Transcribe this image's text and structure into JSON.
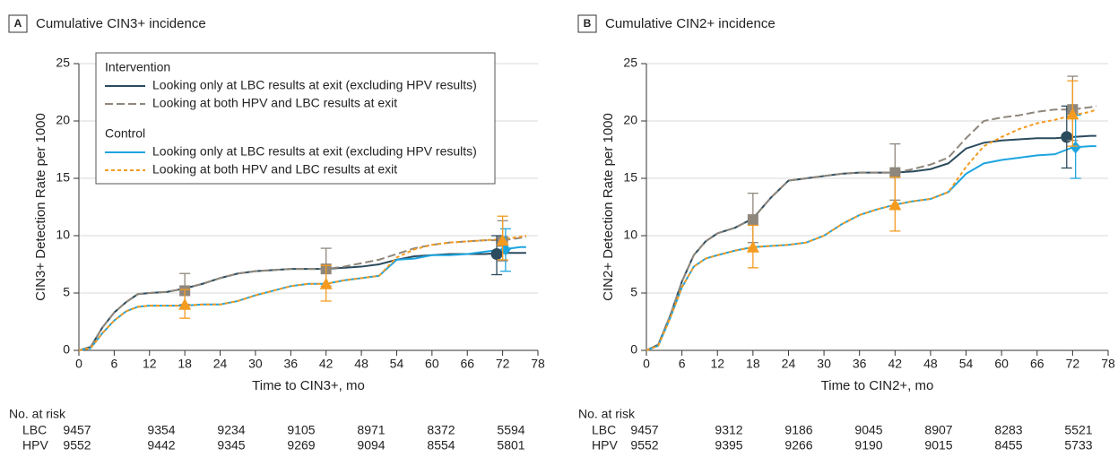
{
  "chart_data": [
    {
      "type": "line",
      "panel_label": "A",
      "title": "Cumulative CIN3+ incidence",
      "xlabel": "Time to CIN3+, mo",
      "ylabel": "CIN3+ Detection Rate per 1000",
      "xlim": [
        0,
        78
      ],
      "xticks": [
        0,
        6,
        12,
        18,
        24,
        30,
        36,
        42,
        48,
        54,
        60,
        66,
        72,
        78
      ],
      "ylim": [
        0,
        25
      ],
      "yticks": [
        0,
        5,
        10,
        15,
        20,
        25
      ],
      "grid": true,
      "legend": true,
      "legend_groups": [
        "Intervention",
        "Control"
      ],
      "x": [
        0,
        2,
        4,
        6,
        8,
        10,
        12,
        15,
        18,
        21,
        24,
        27,
        30,
        33,
        36,
        39,
        42,
        45,
        48,
        51,
        54,
        57,
        60,
        63,
        66,
        69,
        72,
        75,
        76
      ],
      "series": [
        {
          "name": "Looking only at LBC results at exit (excluding HPV results)",
          "group": 0,
          "color": "#2b4b5e",
          "dash": false,
          "marker": "circle",
          "values": [
            0,
            0.3,
            2,
            3.3,
            4.2,
            4.9,
            5.0,
            5.1,
            5.4,
            5.8,
            6.3,
            6.7,
            6.9,
            7.0,
            7.1,
            7.1,
            7.1,
            7.2,
            7.3,
            7.5,
            7.9,
            8.2,
            8.3,
            8.4,
            8.4,
            8.4,
            8.5,
            8.5,
            8.5
          ],
          "marker_x": [
            71
          ],
          "marker_values": [
            8.4
          ],
          "ci_low": [
            6.6
          ],
          "ci_high": [
            10.0
          ]
        },
        {
          "name": "Looking at both HPV and LBC results at exit",
          "group": 0,
          "color": "#8f877c",
          "dash": true,
          "marker": "square",
          "values": [
            0,
            0.3,
            2,
            3.3,
            4.2,
            4.9,
            5.0,
            5.1,
            5.4,
            5.8,
            6.3,
            6.7,
            6.9,
            7.0,
            7.1,
            7.1,
            7.1,
            7.3,
            7.6,
            7.9,
            8.4,
            8.9,
            9.2,
            9.4,
            9.5,
            9.6,
            9.6,
            9.8,
            9.9
          ],
          "marker_x": [
            18,
            42,
            72
          ],
          "marker_values": [
            5.2,
            7.1,
            9.5
          ],
          "ci_low": [
            4.0,
            5.6,
            7.8
          ],
          "ci_high": [
            6.7,
            8.9,
            11.3
          ]
        },
        {
          "name": "Looking only at LBC results at exit (excluding HPV results)",
          "group": 1,
          "color": "#1ea5e0",
          "dash": false,
          "marker": "diamond",
          "values": [
            0,
            0.2,
            1.5,
            2.6,
            3.4,
            3.8,
            3.9,
            3.9,
            3.9,
            4.0,
            4.0,
            4.3,
            4.8,
            5.2,
            5.6,
            5.8,
            5.8,
            6.1,
            6.3,
            6.5,
            7.9,
            8.0,
            8.3,
            8.3,
            8.4,
            8.6,
            8.8,
            9.0,
            9.0
          ],
          "marker_x": [
            72.5
          ],
          "marker_values": [
            8.8
          ],
          "ci_low": [
            6.9
          ],
          "ci_high": [
            10.6
          ]
        },
        {
          "name": "Looking at both HPV and LBC results at exit",
          "group": 1,
          "color": "#f49b20",
          "dash": true,
          "marker": "triangle",
          "values": [
            0,
            0.2,
            1.5,
            2.6,
            3.4,
            3.8,
            3.9,
            3.9,
            3.9,
            4.0,
            4.0,
            4.3,
            4.8,
            5.2,
            5.6,
            5.8,
            5.8,
            6.1,
            6.3,
            6.5,
            8.1,
            8.8,
            9.2,
            9.4,
            9.5,
            9.6,
            9.7,
            9.9,
            10.0
          ],
          "marker_x": [
            18,
            42,
            72
          ],
          "marker_values": [
            4.0,
            5.8,
            9.6
          ],
          "ci_low": [
            2.8,
            4.3,
            7.9
          ],
          "ci_high": [
            5.3,
            7.4,
            11.7
          ]
        }
      ],
      "risk_table": {
        "title": "No. at risk",
        "rows": [
          {
            "label": "LBC",
            "values": [
              9457,
              9354,
              9234,
              9105,
              8971,
              8372,
              5594
            ]
          },
          {
            "label": "HPV",
            "values": [
              9552,
              9442,
              9345,
              9269,
              9094,
              8554,
              5801
            ]
          }
        ]
      }
    },
    {
      "type": "line",
      "panel_label": "B",
      "title": "Cumulative CIN2+ incidence",
      "xlabel": "Time to CIN2+, mo",
      "ylabel": "CIN2+ Detection Rate per 1000",
      "xlim": [
        0,
        78
      ],
      "xticks": [
        0,
        6,
        12,
        18,
        24,
        30,
        36,
        42,
        48,
        54,
        60,
        66,
        72,
        78
      ],
      "ylim": [
        0,
        25
      ],
      "yticks": [
        0,
        5,
        10,
        15,
        20,
        25
      ],
      "grid": true,
      "legend": false,
      "x": [
        0,
        2,
        4,
        6,
        8,
        10,
        12,
        15,
        18,
        21,
        24,
        27,
        30,
        33,
        36,
        39,
        42,
        45,
        48,
        51,
        54,
        57,
        60,
        63,
        66,
        69,
        72,
        75,
        76
      ],
      "series": [
        {
          "color": "#2b4b5e",
          "dash": false,
          "marker": "circle",
          "values": [
            0,
            0.5,
            3,
            6,
            8.3,
            9.5,
            10.2,
            10.7,
            11.5,
            13.3,
            14.8,
            15.0,
            15.2,
            15.4,
            15.5,
            15.5,
            15.5,
            15.6,
            15.8,
            16.3,
            17.6,
            18.1,
            18.3,
            18.4,
            18.5,
            18.5,
            18.6,
            18.7,
            18.7
          ],
          "marker_x": [
            71
          ],
          "marker_values": [
            18.6
          ],
          "ci_low": [
            15.9
          ],
          "ci_high": [
            21.3
          ]
        },
        {
          "color": "#8f877c",
          "dash": true,
          "marker": "square",
          "values": [
            0,
            0.5,
            3,
            6,
            8.3,
            9.5,
            10.2,
            10.7,
            11.5,
            13.3,
            14.8,
            15.0,
            15.2,
            15.4,
            15.5,
            15.5,
            15.5,
            15.8,
            16.2,
            16.8,
            18.5,
            20.0,
            20.3,
            20.5,
            20.8,
            21.0,
            21.0,
            21.2,
            21.3
          ],
          "marker_x": [
            18,
            42,
            72
          ],
          "marker_values": [
            11.4,
            15.5,
            21.0
          ],
          "ci_low": [
            9.4,
            13.1,
            18.3
          ],
          "ci_high": [
            13.7,
            18.0,
            23.9
          ]
        },
        {
          "color": "#1ea5e0",
          "dash": false,
          "marker": "diamond",
          "values": [
            0,
            0.4,
            2.8,
            5.5,
            7.3,
            8.0,
            8.3,
            8.7,
            9.0,
            9.1,
            9.2,
            9.4,
            10.0,
            11.0,
            11.8,
            12.3,
            12.7,
            13.0,
            13.2,
            13.8,
            15.4,
            16.3,
            16.6,
            16.8,
            17.0,
            17.1,
            17.7,
            17.8,
            17.8
          ],
          "marker_x": [
            72.5
          ],
          "marker_values": [
            17.7
          ],
          "ci_low": [
            15.0
          ],
          "ci_high": [
            20.5
          ]
        },
        {
          "color": "#f49b20",
          "dash": true,
          "marker": "triangle",
          "values": [
            0,
            0.4,
            2.8,
            5.5,
            7.3,
            8.0,
            8.3,
            8.7,
            9.0,
            9.1,
            9.2,
            9.4,
            10.0,
            11.0,
            11.8,
            12.3,
            12.7,
            13.0,
            13.2,
            13.8,
            16.0,
            17.8,
            18.6,
            19.3,
            19.8,
            20.1,
            20.5,
            20.8,
            21.0
          ],
          "marker_x": [
            18,
            42,
            72
          ],
          "marker_values": [
            9.0,
            12.7,
            20.6
          ],
          "ci_low": [
            7.2,
            10.4,
            17.8
          ],
          "ci_high": [
            10.9,
            15.1,
            23.5
          ]
        }
      ],
      "risk_table": {
        "title": "No. at risk",
        "rows": [
          {
            "label": "LBC",
            "values": [
              9457,
              9312,
              9186,
              9045,
              8907,
              8283,
              5521
            ]
          },
          {
            "label": "HPV",
            "values": [
              9552,
              9395,
              9266,
              9190,
              9015,
              8455,
              5733
            ]
          }
        ]
      }
    }
  ]
}
